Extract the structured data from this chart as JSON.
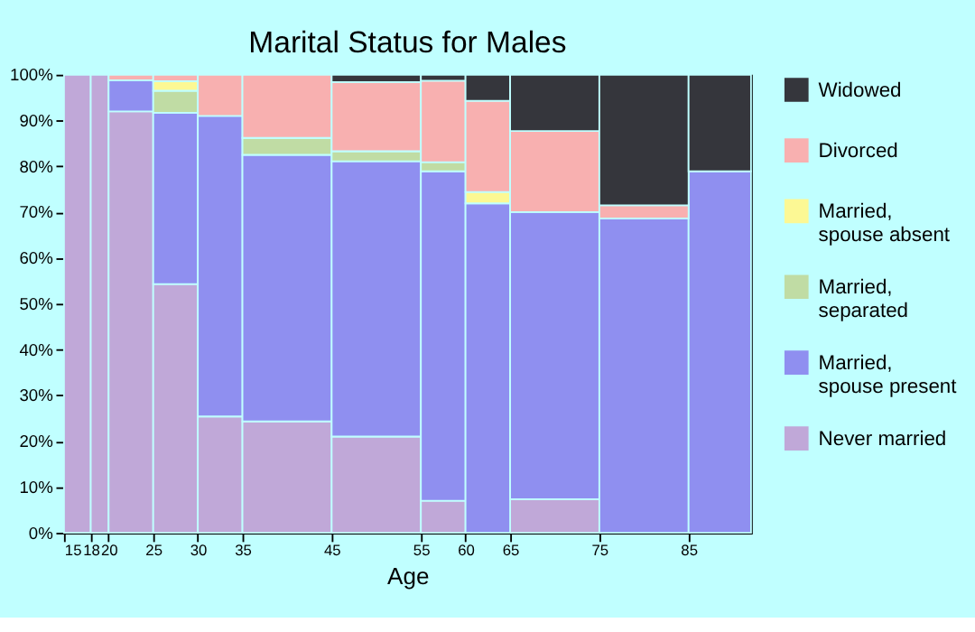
{
  "chart_data": {
    "type": "bar",
    "stacked": true,
    "title": "Marital Status for Males",
    "xlabel": "Age",
    "x": [
      16.5,
      19,
      22.5,
      27.5,
      32.5,
      40,
      50,
      57.5,
      62.5,
      70,
      80,
      88.5
    ],
    "xlim": [
      15,
      92
    ],
    "xticks": [
      15,
      18,
      20,
      25,
      30,
      35,
      45,
      55,
      60,
      65,
      75,
      85
    ],
    "ylim": [
      0,
      100
    ],
    "yticks": [
      {
        "value": 0,
        "label": "0%"
      },
      {
        "value": 10,
        "label": "10%"
      },
      {
        "value": 20,
        "label": "20%"
      },
      {
        "value": 30,
        "label": "30%"
      },
      {
        "value": 40,
        "label": "40%"
      },
      {
        "value": 50,
        "label": "50%"
      },
      {
        "value": 60,
        "label": "60%"
      },
      {
        "value": 70,
        "label": "70%"
      },
      {
        "value": 80,
        "label": "80%"
      },
      {
        "value": 90,
        "label": "90%"
      },
      {
        "value": 100,
        "label": "100%"
      }
    ],
    "grid": false,
    "legend": "right",
    "series": [
      {
        "name": "Never married",
        "color": "#c0a8d8",
        "values": [
          100,
          100,
          92.0,
          54.3,
          25.4,
          24.3,
          21.0,
          7.0,
          0,
          7.3,
          0,
          0
        ]
      },
      {
        "name": "Married, spouse present",
        "color": "#8f8ff0",
        "values": [
          0,
          0,
          6.8,
          37.4,
          65.6,
          58.2,
          60.1,
          71.9,
          71.9,
          62.7,
          68.6,
          78.9
        ]
      },
      {
        "name": "Married, separated",
        "color": "#c0dca4",
        "values": [
          0,
          0,
          0,
          4.8,
          0,
          3.7,
          2.2,
          2.0,
          0,
          0,
          0,
          0
        ]
      },
      {
        "name": "Married, spouse absent",
        "color": "#fcf894",
        "values": [
          0,
          0,
          0,
          2.1,
          0,
          0,
          0,
          0,
          2.5,
          0,
          0,
          0
        ]
      },
      {
        "name": "Divorced",
        "color": "#f8b0b0",
        "values": [
          0,
          0,
          1.2,
          1.4,
          9.0,
          13.8,
          15.1,
          17.8,
          19.9,
          17.7,
          2.9,
          0
        ]
      },
      {
        "name": "Widowed",
        "color": "#35363c",
        "values": [
          0,
          0,
          0,
          0,
          0,
          0,
          1.6,
          1.3,
          5.7,
          12.3,
          28.5,
          21.1
        ]
      }
    ]
  }
}
